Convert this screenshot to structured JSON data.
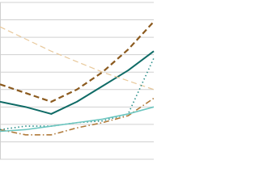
{
  "chart_data": {
    "type": "line",
    "x": [
      0,
      1,
      2,
      3,
      4,
      5,
      6
    ],
    "xlim": [
      0,
      6
    ],
    "ylim": [
      0,
      9
    ],
    "yticks": [
      0,
      1,
      2,
      3,
      4,
      5,
      6,
      7,
      8,
      9
    ],
    "grid": true,
    "series": [
      {
        "color": "#8b5a1e",
        "dash": "dashed",
        "width": 2.2,
        "values": [
          4.3,
          3.8,
          3.3,
          4.0,
          5.0,
          6.3,
          7.9
        ]
      },
      {
        "color": "#0f6b66",
        "dash": "solid",
        "width": 2,
        "values": [
          3.3,
          3.0,
          2.6,
          3.3,
          4.2,
          5.1,
          6.2
        ]
      },
      {
        "color": "#e8c89a",
        "dash": "dashed",
        "width": 1.2,
        "values": [
          7.6,
          6.9,
          6.2,
          5.6,
          5.0,
          4.5,
          4.0
        ]
      },
      {
        "color": "#b07a3a",
        "dash": "dashdot",
        "width": 1.6,
        "values": [
          1.7,
          1.4,
          1.4,
          1.8,
          2.1,
          2.5,
          3.5
        ]
      },
      {
        "color": "#2a8f8a",
        "dash": "dotted",
        "width": 1.6,
        "values": [
          1.7,
          1.9,
          1.9,
          2.1,
          2.2,
          2.6,
          5.8
        ]
      },
      {
        "color": "#6cc6c0",
        "dash": "solid",
        "width": 1.6,
        "values": [
          1.6,
          1.7,
          1.9,
          2.1,
          2.3,
          2.6,
          3.0
        ]
      }
    ]
  }
}
